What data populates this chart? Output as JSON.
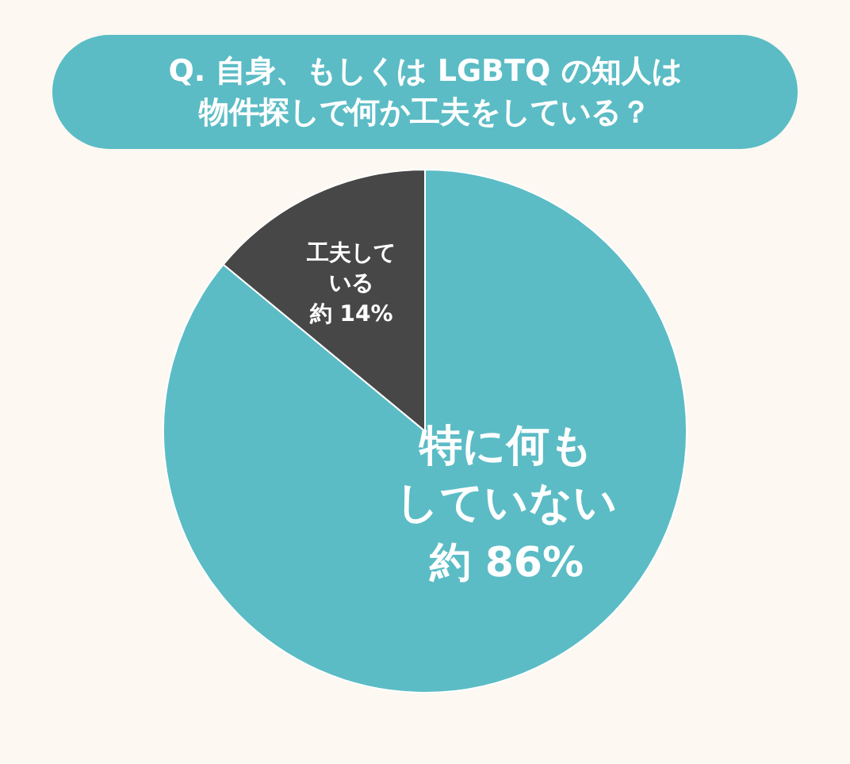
{
  "chart_data": {
    "type": "pie",
    "title": "Q. 自身、もしくは LGBTQ の知人は物件探しで何か工夫をしている？",
    "categories": [
      "特に何もしていない",
      "工夫している"
    ],
    "values": [
      86,
      14
    ],
    "colors": [
      "#5bbcc5",
      "#474747"
    ],
    "value_labels": [
      "約 86%",
      "約 14%"
    ],
    "legend": false
  }
}
